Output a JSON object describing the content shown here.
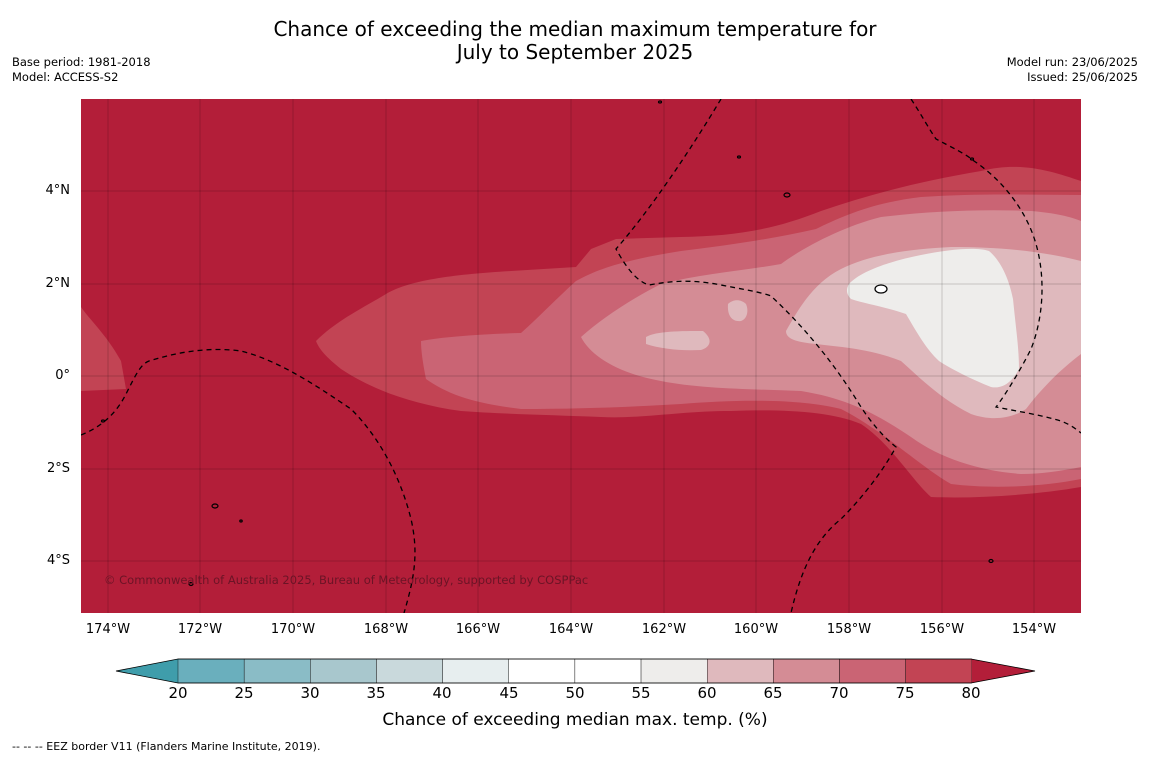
{
  "title": {
    "line1": "Chance of exceeding the median maximum temperature for",
    "line2": "July to September 2025"
  },
  "meta_left": {
    "base_period": "Base period: 1981-2018",
    "model": "Model: ACCESS-S2"
  },
  "meta_right": {
    "model_run": "Model run: 23/06/2025",
    "issued": "Issued: 25/06/2025"
  },
  "map": {
    "copyright": "© Commonwealth of Australia 2025, Bureau of Meteorology, supported by COSPPac",
    "lat_labels": [
      "4°N",
      "2°N",
      "0°",
      "2°S",
      "4°S"
    ],
    "lon_labels": [
      "174°W",
      "172°W",
      "170°W",
      "168°W",
      "166°W",
      "164°W",
      "162°W",
      "160°W",
      "158°W",
      "156°W",
      "154°W"
    ],
    "colors": {
      "gt80": "#b31e39",
      "c75_80": "#c24454",
      "c70_75": "#ca6474",
      "c65_70": "#d48c95",
      "c60_65": "#dfb9bd",
      "c55_60": "#eeedeb",
      "coast": "#000000",
      "eez": "#000000"
    }
  },
  "colorbar": {
    "ticks": [
      "20",
      "25",
      "30",
      "35",
      "40",
      "45",
      "50",
      "55",
      "60",
      "65",
      "70",
      "75",
      "80"
    ],
    "colors": [
      "#3f9dab",
      "#6aafbd",
      "#8abcc6",
      "#a8c7cd",
      "#c9d9dc",
      "#e7eeef",
      "#ffffff",
      "#ffffff",
      "#eeedeb",
      "#dfb9bd",
      "#d48c95",
      "#ca6474",
      "#c24454",
      "#b31e39"
    ],
    "label": "Chance of exceeding median max. temp. (%)"
  },
  "footnote": "--  --  -- EEZ border V11 (Flanders Marine Institute, 2019)."
}
